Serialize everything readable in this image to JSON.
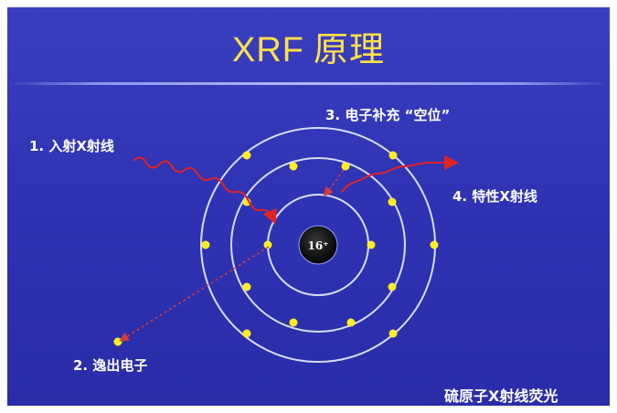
{
  "title": {
    "latin": "XRF",
    "cn": "原理"
  },
  "nucleus_label": "16⁺",
  "labels": {
    "incident": "1. 入射X射线",
    "ejected": "2. 逸出电子",
    "refill": "3. 电子补充 “空位”",
    "characteristic": "4.  特性X射线"
  },
  "caption": "硫原子X射线荧光",
  "colors": {
    "background": "#2f33b4",
    "title": "#ffe14a",
    "electron": "#ffee22",
    "xray": "#e02424",
    "orbit": "#d8dcff"
  }
}
